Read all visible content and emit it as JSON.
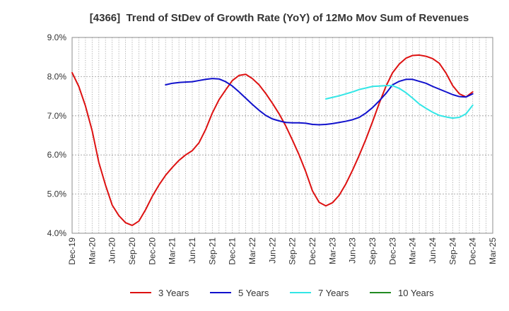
{
  "chart_data": {
    "type": "line",
    "title": "[4366]  Trend of StDev of Growth Rate (YoY) of 12Mo Mov Sum of Revenues",
    "xlabel": "",
    "ylabel": "",
    "xlim": [
      0,
      63
    ],
    "x_tick_step": 3,
    "x_ticks": [
      "Dec-19",
      "Mar-20",
      "Jun-20",
      "Sep-20",
      "Dec-20",
      "Mar-21",
      "Jun-21",
      "Sep-21",
      "Dec-21",
      "Mar-22",
      "Jun-22",
      "Sep-22",
      "Dec-22",
      "Mar-23",
      "Jun-23",
      "Sep-23",
      "Dec-23",
      "Mar-24",
      "Jun-24",
      "Sep-24",
      "Dec-24",
      "Mar-25"
    ],
    "ylim": [
      4.0,
      9.0
    ],
    "y_tick_values": [
      4,
      5,
      6,
      7,
      8,
      9
    ],
    "y_ticks": [
      "4.0%",
      "5.0%",
      "6.0%",
      "7.0%",
      "8.0%",
      "9.0%"
    ],
    "grid": true,
    "legend_position": "bottom",
    "series": [
      {
        "name": "3 Years",
        "color": "#dd1111",
        "start_month_index": 0,
        "values": [
          8.1,
          7.75,
          7.25,
          6.62,
          5.81,
          5.23,
          4.72,
          4.45,
          4.27,
          4.2,
          4.31,
          4.6,
          4.94,
          5.23,
          5.48,
          5.68,
          5.86,
          6.0,
          6.11,
          6.31,
          6.65,
          7.07,
          7.41,
          7.66,
          7.9,
          8.03,
          8.06,
          7.95,
          7.79,
          7.57,
          7.32,
          7.05,
          6.74,
          6.38,
          6.0,
          5.57,
          5.08,
          4.79,
          4.7,
          4.78,
          4.97,
          5.26,
          5.61,
          5.99,
          6.4,
          6.85,
          7.32,
          7.75,
          8.1,
          8.32,
          8.47,
          8.54,
          8.55,
          8.52,
          8.46,
          8.34,
          8.09,
          7.77,
          7.56,
          7.48,
          7.61
        ]
      },
      {
        "name": "5 Years",
        "color": "#1111cc",
        "start_month_index": 14,
        "values": [
          7.79,
          7.83,
          7.85,
          7.86,
          7.87,
          7.9,
          7.93,
          7.95,
          7.94,
          7.87,
          7.76,
          7.61,
          7.45,
          7.29,
          7.14,
          7.01,
          6.92,
          6.87,
          6.83,
          6.82,
          6.82,
          6.81,
          6.78,
          6.77,
          6.78,
          6.8,
          6.83,
          6.86,
          6.9,
          6.96,
          7.07,
          7.21,
          7.38,
          7.57,
          7.79,
          7.88,
          7.93,
          7.93,
          7.88,
          7.83,
          7.75,
          7.68,
          7.61,
          7.54,
          7.49,
          7.48,
          7.56
        ]
      },
      {
        "name": "7 Years",
        "color": "#33e6e6",
        "start_month_index": 38,
        "values": [
          7.43,
          7.47,
          7.51,
          7.56,
          7.61,
          7.67,
          7.71,
          7.75,
          7.76,
          7.77,
          7.77,
          7.7,
          7.59,
          7.45,
          7.3,
          7.19,
          7.09,
          7.01,
          6.97,
          6.94,
          6.96,
          7.05,
          7.27
        ]
      },
      {
        "name": "10 Years",
        "color": "#228b22",
        "start_month_index": null,
        "values": []
      }
    ]
  }
}
